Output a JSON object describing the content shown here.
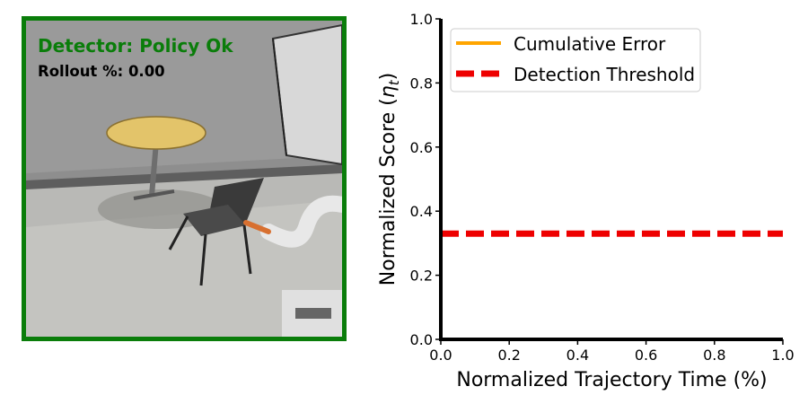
{
  "panel": {
    "status_text": "Detector: Policy Ok",
    "status_color": "#0a7d0a",
    "rollout_text": "Rollout %: 0.00"
  },
  "chart_data": {
    "type": "line",
    "xlabel": "Normalized Trajectory Time (%)",
    "ylabel_prefix": "Normalized Score (",
    "ylabel_symbol": "η",
    "ylabel_subscript": "t",
    "ylabel_suffix": ")",
    "xlim": [
      0.0,
      1.0
    ],
    "ylim": [
      0.0,
      1.0
    ],
    "xticks": [
      "0.0",
      "0.2",
      "0.4",
      "0.6",
      "0.8",
      "1.0"
    ],
    "yticks": [
      "0.0",
      "0.2",
      "0.4",
      "0.6",
      "0.8",
      "1.0"
    ],
    "grid": false,
    "legend_placement": "top-left",
    "series": [
      {
        "name": "Cumulative Error",
        "style": "solid",
        "color": "#ffa500",
        "x": [],
        "y": []
      },
      {
        "name": "Detection Threshold",
        "style": "dashed",
        "color": "#ee0000",
        "x": [
          0.0,
          1.0
        ],
        "y": [
          0.33,
          0.33
        ]
      }
    ]
  }
}
